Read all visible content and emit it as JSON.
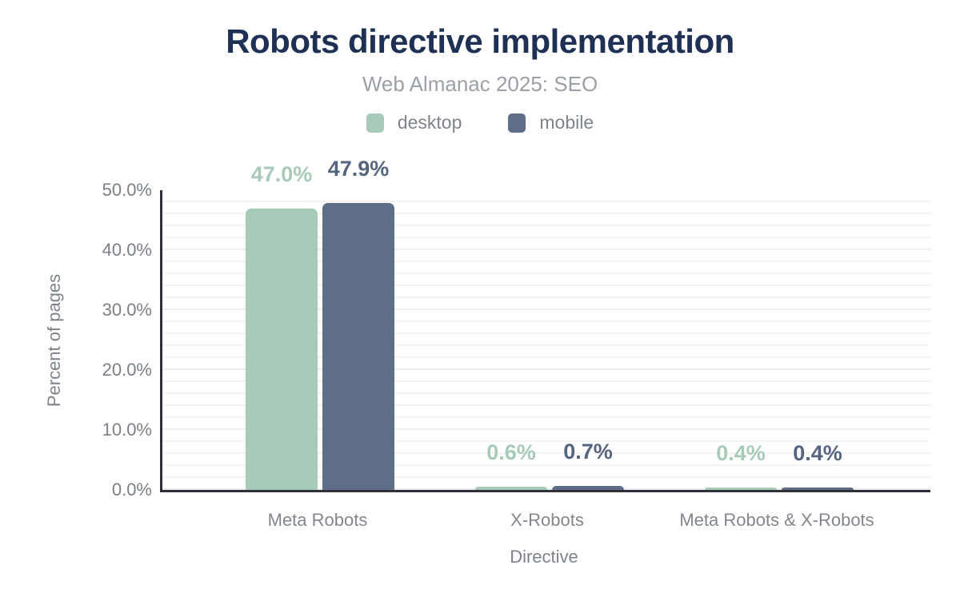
{
  "header": {
    "title": "Robots directive implementation",
    "subtitle": "Web Almanac 2025: SEO"
  },
  "colors": {
    "title_navy": "#1e3053",
    "desktop_green": "#a8cab9",
    "mobile_slate": "#5f6e87",
    "mobile_label": "#55647f",
    "axis_line": "#303136",
    "tick_text": "#7b8086",
    "gridline": "#f3f4f6"
  },
  "chart_data": {
    "type": "bar",
    "title": "Robots directive implementation",
    "subtitle": "Web Almanac 2025: SEO",
    "categories": [
      "Meta Robots",
      "X-Robots",
      "Meta Robots & X-Robots"
    ],
    "series": [
      {
        "name": "desktop",
        "color": "#a8cab9",
        "label_color": "#a8cab9",
        "values": [
          47.0,
          0.6,
          0.4
        ],
        "value_labels": [
          "47.0%",
          "0.6%",
          "0.4%"
        ]
      },
      {
        "name": "mobile",
        "color": "#5f6e87",
        "label_color": "#55647f",
        "values": [
          47.9,
          0.7,
          0.4
        ],
        "value_labels": [
          "47.9%",
          "0.7%",
          "0.4%"
        ]
      }
    ],
    "xlabel": "Directive",
    "ylabel": "Percent of pages",
    "ylim": [
      0,
      50
    ],
    "yticks": [
      0,
      10,
      20,
      30,
      40,
      50
    ],
    "ytick_labels": [
      "0.0%",
      "10.0%",
      "20.0%",
      "30.0%",
      "40.0%",
      "50.0%"
    ],
    "grid": true,
    "legend_position": "top"
  }
}
